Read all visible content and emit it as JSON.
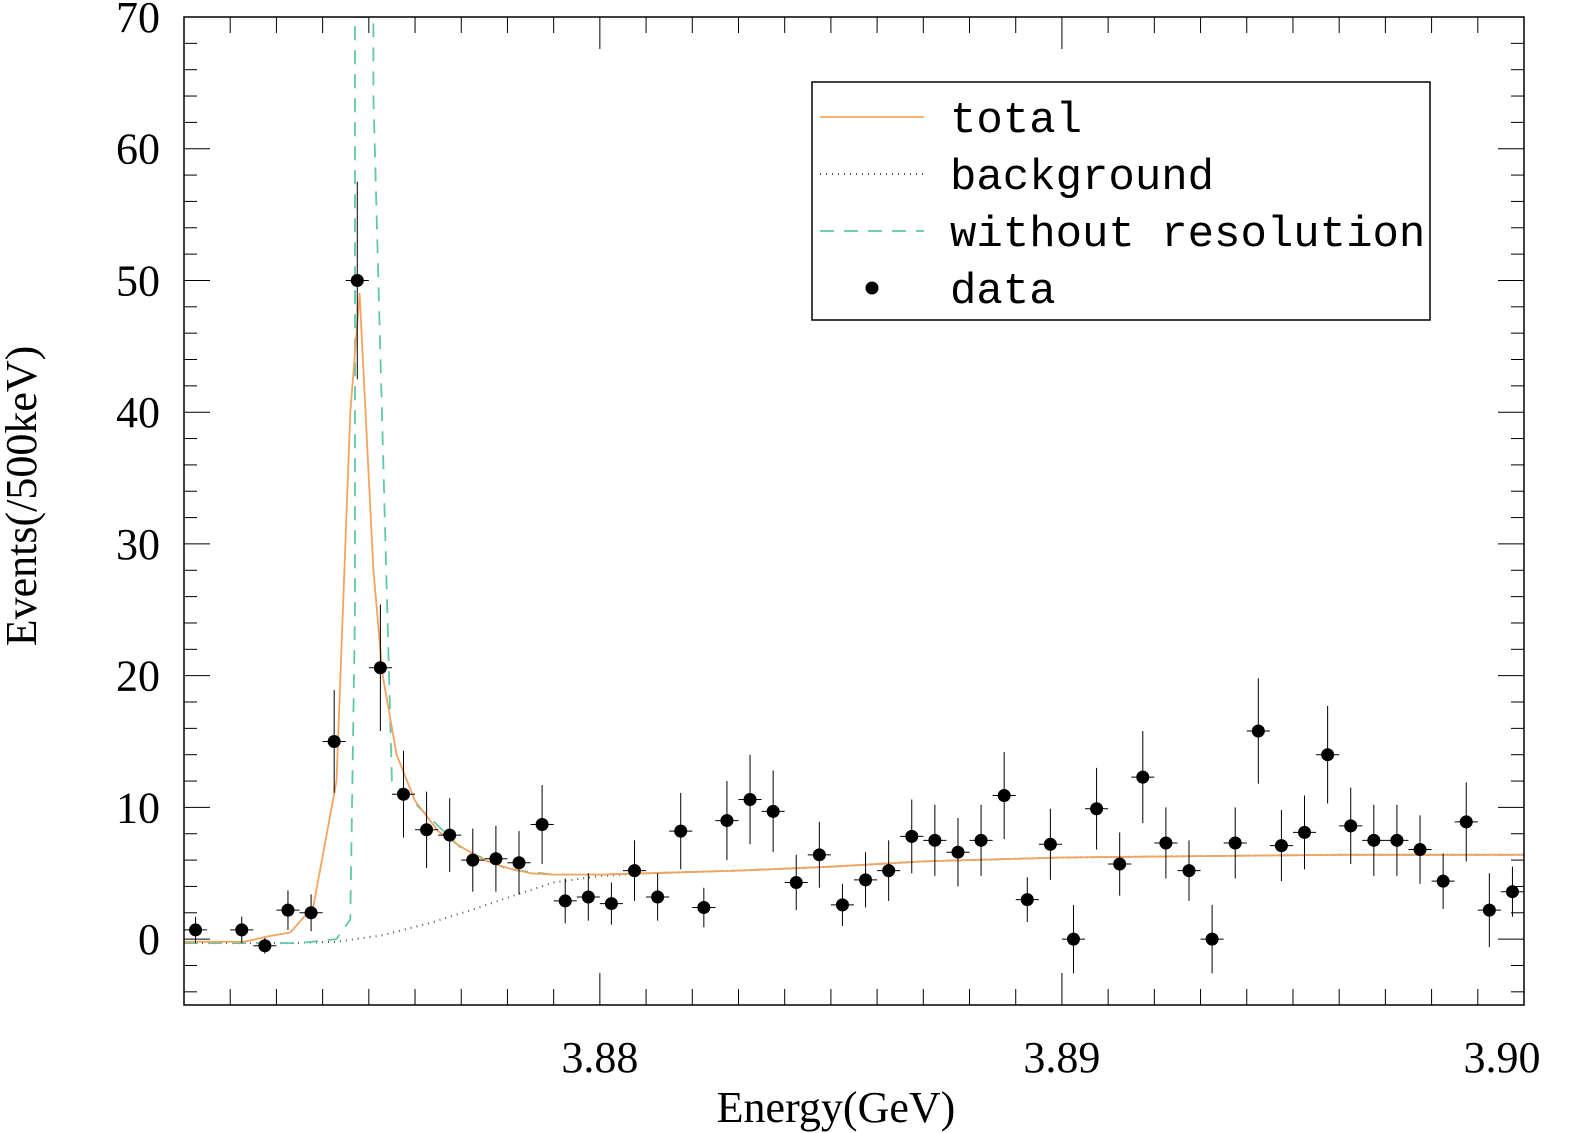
{
  "chart_data": {
    "type": "scatter",
    "title": "",
    "xlabel": "Energy(GeV)",
    "ylabel": "Events(/500keV)",
    "xlim": [
      3.871,
      3.9
    ],
    "ylim": [
      -5,
      70
    ],
    "bin_width": 0.0005,
    "x_ticks": [
      3.88,
      3.89,
      3.9
    ],
    "x_tick_labels": [
      "3.88",
      "3.89",
      "3.90"
    ],
    "y_ticks": [
      0,
      10,
      20,
      30,
      40,
      50,
      60,
      70
    ],
    "y_tick_labels": [
      "0",
      "10",
      "20",
      "30",
      "40",
      "50",
      "60",
      "70"
    ],
    "legend_position": "top-right",
    "legend": [
      {
        "label": "total",
        "style": "solid",
        "color": "#f4a460"
      },
      {
        "label": "background",
        "style": "dotted",
        "color": "#555555"
      },
      {
        "label": "without resolution",
        "style": "dashed",
        "color": "#5fc8a8"
      },
      {
        "label": "data",
        "style": "marker",
        "color": "#000000"
      }
    ],
    "series": [
      {
        "name": "data",
        "x": [
          3.87125,
          3.87225,
          3.87275,
          3.87325,
          3.87375,
          3.87425,
          3.87475,
          3.87525,
          3.87575,
          3.87625,
          3.87675,
          3.87725,
          3.87775,
          3.87825,
          3.87875,
          3.87925,
          3.87975,
          3.88025,
          3.88075,
          3.88125,
          3.88175,
          3.88225,
          3.88275,
          3.88325,
          3.88375,
          3.88425,
          3.88475,
          3.88525,
          3.88575,
          3.88625,
          3.88675,
          3.88725,
          3.88775,
          3.88825,
          3.88875,
          3.88925,
          3.88975,
          3.89025,
          3.89075,
          3.89125,
          3.89175,
          3.89225,
          3.89275,
          3.89325,
          3.89375,
          3.89425,
          3.89475,
          3.89525,
          3.89575,
          3.89625,
          3.89675,
          3.89725,
          3.89775,
          3.89825,
          3.89875,
          3.89925,
          3.89975
        ],
        "y": [
          0.7,
          0.7,
          -0.5,
          2.2,
          2.0,
          15.0,
          50.0,
          20.6,
          11.0,
          8.3,
          7.9,
          6.0,
          6.1,
          5.8,
          8.7,
          2.9,
          3.2,
          2.7,
          5.2,
          3.2,
          8.2,
          2.4,
          9.0,
          10.6,
          9.7,
          4.3,
          6.4,
          2.6,
          4.5,
          5.2,
          7.8,
          7.5,
          6.6,
          7.5,
          10.9,
          3.0,
          7.2,
          0.0,
          9.9,
          5.7,
          12.3,
          7.3,
          5.2,
          0.0,
          7.3,
          15.8,
          7.1,
          8.1,
          14.0,
          8.6,
          7.5,
          7.5,
          6.8,
          4.4,
          8.9,
          2.2,
          3.6
        ],
        "yerr": [
          1.0,
          1.0,
          0.6,
          1.5,
          1.4,
          3.9,
          7.5,
          4.8,
          3.3,
          2.9,
          2.8,
          2.4,
          2.5,
          2.4,
          3.0,
          1.7,
          1.8,
          1.6,
          2.3,
          1.8,
          2.9,
          1.5,
          3.0,
          3.4,
          3.1,
          2.1,
          2.5,
          1.6,
          2.1,
          2.3,
          2.8,
          2.7,
          2.6,
          2.7,
          3.3,
          1.7,
          2.7,
          2.6,
          3.1,
          2.4,
          3.5,
          2.7,
          2.3,
          2.6,
          2.7,
          4.0,
          2.7,
          2.8,
          3.7,
          2.9,
          2.7,
          2.7,
          2.6,
          2.1,
          3.0,
          2.8,
          1.9
        ]
      },
      {
        "name": "total",
        "x": [
          3.871,
          3.8723,
          3.8728,
          3.8733,
          3.8738,
          3.8743,
          3.8746,
          3.8748,
          3.8751,
          3.8753,
          3.8756,
          3.876,
          3.8765,
          3.877,
          3.8775,
          3.878,
          3.8785,
          3.879,
          3.88,
          3.881,
          3.883,
          3.885,
          3.887,
          3.89,
          3.893,
          3.896,
          3.9
        ],
        "y": [
          -0.2,
          -0.2,
          0.2,
          0.5,
          2.5,
          12.0,
          40.0,
          49.0,
          28.0,
          20.0,
          14.0,
          10.5,
          8.2,
          7.0,
          6.0,
          5.4,
          5.0,
          4.9,
          4.9,
          5.0,
          5.2,
          5.5,
          5.9,
          6.2,
          6.3,
          6.4,
          6.4
        ]
      },
      {
        "name": "background",
        "x": [
          3.871,
          3.8733,
          3.8743,
          3.8753,
          3.8763,
          3.8773,
          3.8783,
          3.879,
          3.88,
          3.881,
          3.883,
          3.885,
          3.887,
          3.89,
          3.893,
          3.896,
          3.9
        ],
        "y": [
          -0.3,
          -0.3,
          -0.2,
          0.3,
          1.2,
          2.3,
          3.5,
          4.3,
          4.8,
          5.0,
          5.2,
          5.5,
          5.9,
          6.2,
          6.3,
          6.4,
          6.4
        ]
      },
      {
        "name": "without resolution",
        "x": [
          3.871,
          3.8735,
          3.8743,
          3.8746,
          3.8747,
          3.8747,
          3.875,
          3.8751,
          3.8751,
          3.8755,
          3.877,
          3.878,
          3.879,
          3.88,
          3.881,
          3.883,
          3.885,
          3.887,
          3.89,
          3.893,
          3.896,
          3.9
        ],
        "y": [
          -0.3,
          -0.3,
          0.0,
          1.5,
          25.0,
          70.0,
          70.0,
          70.0,
          64.0,
          12.0,
          6.9,
          5.3,
          4.9,
          4.9,
          5.0,
          5.2,
          5.5,
          5.9,
          6.2,
          6.3,
          6.4,
          6.4
        ]
      }
    ]
  }
}
